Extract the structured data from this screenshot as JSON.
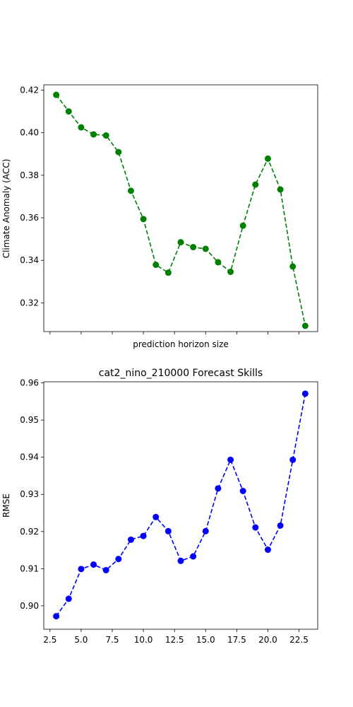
{
  "chart_data": [
    {
      "type": "line",
      "title": "",
      "xlabel": "prediction horizon size",
      "ylabel": "Climate Anomaly (ACC)",
      "xlim": [
        2.0,
        24.0
      ],
      "ylim": [
        0.3065,
        0.4225
      ],
      "x_ticks": [
        "",
        "",
        "",
        "",
        "",
        "",
        "",
        "",
        ""
      ],
      "y_ticks": [
        "0.32",
        "0.34",
        "0.36",
        "0.38",
        "0.40",
        "0.42"
      ],
      "color": "#008000",
      "line_style": "dashed",
      "marker": "circle",
      "grid": false,
      "series": [
        {
          "x": [
            3,
            4,
            5,
            6,
            7,
            8,
            9,
            10,
            11,
            12,
            13,
            14,
            15,
            16,
            17,
            18,
            19,
            20,
            21,
            22,
            23
          ],
          "values": [
            0.4178,
            0.41,
            0.4025,
            0.3992,
            0.3987,
            0.3909,
            0.3727,
            0.3594,
            0.3379,
            0.3342,
            0.3485,
            0.3462,
            0.3454,
            0.3391,
            0.3346,
            0.3563,
            0.3756,
            0.3878,
            0.3733,
            0.3371,
            0.3092
          ]
        }
      ]
    },
    {
      "type": "line",
      "title": "cat2_nino_210000 Forecast Skills",
      "xlabel": "",
      "ylabel": "RMSE",
      "xlim": [
        2.0,
        24.0
      ],
      "ylim": [
        0.8937,
        0.9603
      ],
      "x_ticks": [
        "2.5",
        "5.0",
        "7.5",
        "10.0",
        "12.5",
        "15.0",
        "17.5",
        "20.0",
        "22.5"
      ],
      "y_ticks": [
        "0.90",
        "0.91",
        "0.92",
        "0.93",
        "0.94",
        "0.95",
        "0.96"
      ],
      "color": "#0000ff",
      "line_style": "dashed",
      "marker": "circle",
      "grid": false,
      "series": [
        {
          "x": [
            3,
            4,
            5,
            6,
            7,
            8,
            9,
            10,
            11,
            12,
            13,
            14,
            15,
            16,
            17,
            18,
            19,
            20,
            21,
            22,
            23
          ],
          "values": [
            0.8972,
            0.9019,
            0.9099,
            0.9111,
            0.9096,
            0.9126,
            0.9178,
            0.9188,
            0.9239,
            0.9201,
            0.9121,
            0.9133,
            0.9201,
            0.9316,
            0.9393,
            0.9309,
            0.9211,
            0.9151,
            0.9216,
            0.9393,
            0.9571
          ]
        }
      ]
    }
  ]
}
